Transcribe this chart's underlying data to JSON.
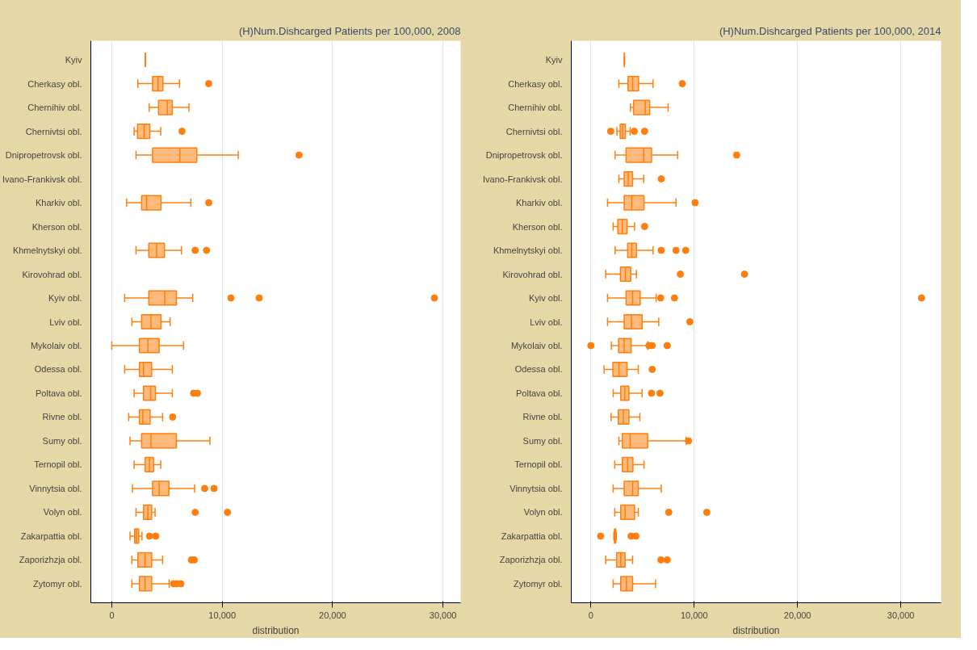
{
  "chart_data": [
    {
      "type": "box",
      "orientation": "horizontal",
      "title": "(H)Num.Dishcarged Patients per 100,000, 2008",
      "xlabel": "distribution",
      "grid": "x",
      "marker": "circle",
      "categories": [
        "Kyiv",
        "Cherkasy obl.",
        "Chernihiv obl.",
        "Chernivtsi obl.",
        "Dnipropetrovsk obl.",
        "Ivano-Frankivsk obl.",
        "Kharkiv obl.",
        "Kherson obl.",
        "Khmelnytskyi obl.",
        "Kirovohrad obl.",
        "Kyiv obl.",
        "Lviv obl.",
        "Mykolaiv obl.",
        "Odessa obl.",
        "Poltava obl.",
        "Rivne obl.",
        "Sumy obl.",
        "Ternopil obl.",
        "Vinnytsia obl.",
        "Volyn obl.",
        "Zakarpattia obl.",
        "Zaporizhzja obl.",
        "Zytomyr obl."
      ],
      "xlim": [
        -1900,
        31600
      ],
      "xticks": [
        0,
        {
          "value": 10000,
          "label": "10,000"
        },
        {
          "value": 20000,
          "label": "20,000"
        },
        {
          "value": 30000,
          "label": "30,000"
        }
      ],
      "series": [
        {
          "color": "#ff7f0e",
          "boxes": [
            {
              "low": 3040,
              "q1": 3040,
              "median": 3040,
              "q3": 3040,
              "high": 3040
            },
            {
              "low": 2360,
              "q1": 3690,
              "median": 4180,
              "q3": 4630,
              "high": 6130,
              "outliers": [
                8780
              ]
            },
            {
              "low": 3380,
              "q1": 4230,
              "median": 5030,
              "q3": 5480,
              "high": 6990
            },
            {
              "low": 2020,
              "q1": 2330,
              "median": 2930,
              "q3": 3440,
              "high": 4430,
              "outliers": [
                6360
              ]
            },
            {
              "low": 2190,
              "q1": 3690,
              "median": 6160,
              "q3": 7700,
              "high": 11450,
              "outliers": [
                16960
              ]
            },
            null,
            {
              "low": 1340,
              "q1": 2700,
              "median": 3150,
              "q3": 4460,
              "high": 7160,
              "outliers": [
                8780
              ]
            },
            null,
            {
              "low": 2190,
              "q1": 3350,
              "median": 4060,
              "q3": 4770,
              "high": 6310,
              "outliers": [
                7550,
                8580
              ]
            },
            null,
            {
              "low": 1160,
              "q1": 3350,
              "median": 4800,
              "q3": 5850,
              "high": 7330,
              "outliers": [
                10790,
                13350,
                29220
              ]
            },
            {
              "low": 1820,
              "q1": 2700,
              "median": 3550,
              "q3": 4460,
              "high": 5280
            },
            {
              "low": 0,
              "q1": 2500,
              "median": 3270,
              "q3": 4290,
              "high": 6500
            },
            {
              "low": 1160,
              "q1": 2500,
              "median": 2870,
              "q3": 3610,
              "high": 5480
            },
            {
              "low": 2020,
              "q1": 2870,
              "median": 3520,
              "q3": 3950,
              "high": 5480,
              "outliers": [
                7410,
                7750
              ]
            },
            {
              "low": 1530,
              "q1": 2500,
              "median": 2810,
              "q3": 3470,
              "high": 4600,
              "outliers": [
                5510
              ]
            },
            {
              "low": 1650,
              "q1": 2700,
              "median": 3550,
              "q3": 5850,
              "high": 8890
            },
            {
              "low": 2020,
              "q1": 3010,
              "median": 3410,
              "q3": 3780,
              "high": 4430
            },
            {
              "low": 1870,
              "q1": 3690,
              "median": 4290,
              "q3": 5170,
              "high": 7500,
              "outliers": [
                8410,
                9260
              ]
            },
            {
              "low": 2190,
              "q1": 2870,
              "median": 3270,
              "q3": 3610,
              "high": 3920,
              "outliers": [
                7550,
                10480
              ]
            },
            {
              "low": 1650,
              "q1": 2070,
              "median": 2240,
              "q3": 2440,
              "high": 2730,
              "outliers": [
                3410,
                3980
              ]
            },
            {
              "low": 1820,
              "q1": 2360,
              "median": 3010,
              "q3": 3610,
              "high": 4600,
              "outliers": [
                7210,
                7470
              ]
            },
            {
              "low": 1820,
              "q1": 2500,
              "median": 3010,
              "q3": 3610,
              "high": 5200,
              "outliers": [
                5600,
                5900,
                6250
              ]
            }
          ]
        }
      ]
    },
    {
      "type": "box",
      "orientation": "horizontal",
      "title": "(H)Num.Dishcarged Patients per 100,000, 2014",
      "xlabel": "distribution",
      "grid": "x",
      "marker": "circle",
      "categories": [
        "Kyiv",
        "Cherkasy obl.",
        "Chernihiv obl.",
        "Chernivtsi obl.",
        "Dnipropetrovsk obl.",
        "Ivano-Frankivsk obl.",
        "Kharkiv obl.",
        "Kherson obl.",
        "Khmelnytskyi obl.",
        "Kirovohrad obl.",
        "Kyiv obl.",
        "Lviv obl.",
        "Mykolaiv obl.",
        "Odessa obl.",
        "Poltava obl.",
        "Rivne obl.",
        "Sumy obl.",
        "Ternopil obl.",
        "Vinnytsia obl.",
        "Volyn obl.",
        "Zakarpattia obl.",
        "Zaporizhzja obl.",
        "Zytomyr obl."
      ],
      "xlim": [
        -1900,
        33900
      ],
      "xticks": [
        0,
        {
          "value": 10000,
          "label": "10,000"
        },
        {
          "value": 20000,
          "label": "20,000"
        },
        {
          "value": 30000,
          "label": "30,000"
        }
      ],
      "series": [
        {
          "color": "#ff7f0e",
          "boxes": [
            {
              "low": 3250,
              "q1": 3250,
              "median": 3250,
              "q3": 3250,
              "high": 3250
            },
            {
              "low": 2710,
              "q1": 3590,
              "median": 4040,
              "q3": 4620,
              "high": 6020,
              "outliers": [
                8850
              ]
            },
            {
              "low": 3830,
              "q1": 4130,
              "median": 5260,
              "q3": 5690,
              "high": 7480
            },
            {
              "low": 2520,
              "q1": 2830,
              "median": 3070,
              "q3": 3340,
              "high": 3800,
              "outliers": [
                1920,
                4200,
                5200
              ]
            },
            {
              "low": 2340,
              "q1": 3410,
              "median": 5110,
              "q3": 5870,
              "high": 8390,
              "outliers": [
                14110
              ]
            },
            {
              "low": 2710,
              "q1": 3220,
              "median": 3620,
              "q3": 4040,
              "high": 5110,
              "outliers": [
                6810
              ]
            },
            {
              "low": 1610,
              "q1": 3220,
              "median": 3950,
              "q3": 5140,
              "high": 8240,
              "outliers": [
                10090
              ]
            },
            {
              "low": 2160,
              "q1": 2610,
              "median": 3040,
              "q3": 3500,
              "high": 4230,
              "outliers": [
                5200
              ]
            },
            {
              "low": 2340,
              "q1": 3560,
              "median": 3950,
              "q3": 4410,
              "high": 6020,
              "outliers": [
                6810,
                8240,
                9180
              ]
            },
            {
              "low": 1430,
              "q1": 2860,
              "median": 3340,
              "q3": 3860,
              "high": 4410,
              "outliers": [
                8660,
                14870
              ]
            },
            {
              "low": 1610,
              "q1": 3410,
              "median": 4040,
              "q3": 4770,
              "high": 6320,
              "outliers": [
                6750,
                8090,
                32010
              ]
            },
            {
              "low": 1610,
              "q1": 3220,
              "median": 3920,
              "q3": 4960,
              "high": 6570,
              "outliers": [
                9580
              ]
            },
            {
              "low": 1980,
              "q1": 2680,
              "median": 3220,
              "q3": 3890,
              "high": 5500,
              "outliers": [
                0,
                5620,
                5930,
                7390
              ]
            },
            {
              "low": 1280,
              "q1": 2130,
              "median": 2710,
              "q3": 3500,
              "high": 4590,
              "outliers": [
                5930
              ]
            },
            {
              "low": 2160,
              "q1": 2890,
              "median": 3280,
              "q3": 3680,
              "high": 4960,
              "outliers": [
                5870,
                6690
              ]
            },
            {
              "low": 1950,
              "q1": 2650,
              "median": 3130,
              "q3": 3680,
              "high": 4740
            },
            {
              "low": 2710,
              "q1": 3040,
              "median": 3800,
              "q3": 5500,
              "high": 9210,
              "outliers": [
                9450
              ]
            },
            {
              "low": 2310,
              "q1": 3040,
              "median": 3560,
              "q3": 4070,
              "high": 5140
            },
            {
              "low": 2160,
              "q1": 3220,
              "median": 4040,
              "q3": 4590,
              "high": 6810
            },
            {
              "low": 2310,
              "q1": 2890,
              "median": 3310,
              "q3": 4230,
              "high": 4590,
              "outliers": [
                7540,
                11220
              ]
            },
            {
              "low": 2220,
              "q1": 2280,
              "median": 2340,
              "q3": 2400,
              "high": 2460,
              "outliers": [
                940,
                3890,
                4350
              ]
            },
            {
              "low": 1430,
              "q1": 2490,
              "median": 2890,
              "q3": 3310,
              "high": 4040,
              "outliers": [
                6780,
                7390
              ]
            },
            {
              "low": 2160,
              "q1": 2890,
              "median": 3440,
              "q3": 4040,
              "high": 6260
            }
          ]
        }
      ]
    }
  ]
}
